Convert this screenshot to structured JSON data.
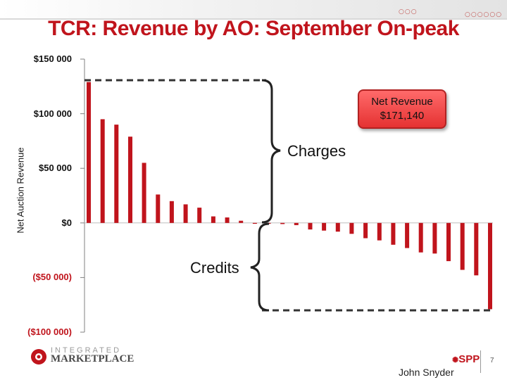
{
  "title": "TCR: Revenue by AO: September On-peak",
  "chart_data": {
    "type": "bar",
    "title": "TCR: Revenue by AO: September On-peak",
    "ylabel": "Net Auction Revenue",
    "xlabel": "",
    "ylim": [
      -100000,
      150000
    ],
    "yticks": [
      150000,
      100000,
      50000,
      0,
      -50000,
      -100000
    ],
    "ytick_labels": [
      "$150 000",
      "$100 000",
      "$50 000",
      "$0",
      "($50 000)",
      "($100 000)"
    ],
    "values": [
      129000,
      95000,
      90000,
      79000,
      55000,
      26000,
      20000,
      17000,
      14000,
      6000,
      5000,
      2000,
      0,
      0,
      -1000,
      -2000,
      -6000,
      -7000,
      -8000,
      -10000,
      -14000,
      -16000,
      -20000,
      -23000,
      -27000,
      -28000,
      -35000,
      -43000,
      -48000,
      -79000
    ],
    "bar_color": "#c0141c",
    "annotations": {
      "net_revenue_label": "Net Revenue",
      "net_revenue_value": "$171,140",
      "charges_label": "Charges",
      "credits_label": "Credits"
    }
  },
  "footer": {
    "logo_top": "INTEGRATED",
    "logo_main": "MARKETPLACE",
    "presenter": "John Snyder",
    "brand": "SPP",
    "page_number": "7"
  }
}
